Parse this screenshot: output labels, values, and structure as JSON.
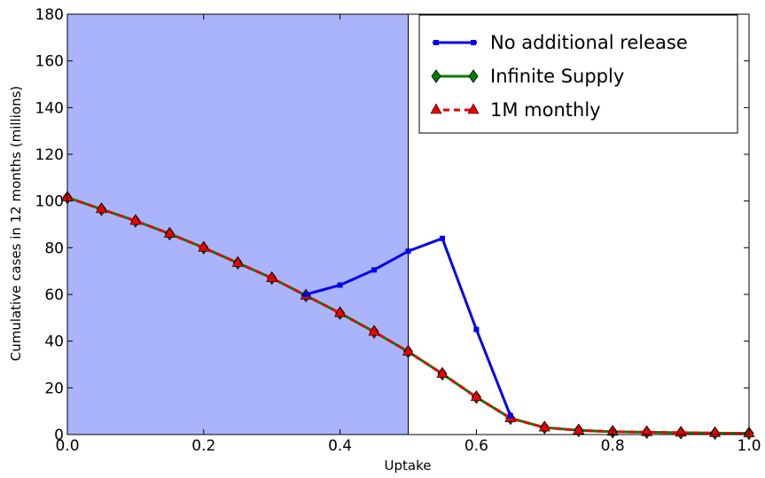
{
  "chart_data": {
    "type": "line",
    "title": "",
    "xlabel": "Uptake",
    "ylabel": "Cumulative cases in 12 months (millions)",
    "xlim": [
      0.0,
      1.0
    ],
    "ylim": [
      0,
      180
    ],
    "xticks": [
      "0.0",
      "0.2",
      "0.4",
      "0.6",
      "0.8",
      "1.0"
    ],
    "yticks": [
      "0",
      "20",
      "40",
      "60",
      "80",
      "100",
      "120",
      "140",
      "160",
      "180"
    ],
    "grid": false,
    "legend_position": "top-right",
    "shaded_region": {
      "x_from": 0.0,
      "x_to": 0.5,
      "color": "#aab4fa"
    },
    "vline_x": 0.5,
    "series": [
      {
        "name": "No additional release",
        "color": "#0000ee",
        "marker": "square",
        "linestyle": "solid",
        "x": [
          0.35,
          0.4,
          0.45,
          0.5,
          0.55,
          0.6,
          0.65
        ],
        "y": [
          60,
          64,
          70.5,
          78.5,
          84,
          45,
          8
        ]
      },
      {
        "name": "Infinite Supply",
        "color": "#007f00",
        "marker": "diamond",
        "linestyle": "solid",
        "x": [
          0.0,
          0.05,
          0.1,
          0.15,
          0.2,
          0.25,
          0.3,
          0.35,
          0.4,
          0.45,
          0.5,
          0.55,
          0.6,
          0.65,
          0.7,
          0.75,
          0.8,
          0.85,
          0.9,
          0.95,
          1.0
        ],
        "y": [
          101.5,
          96.5,
          91.5,
          86,
          80,
          73.5,
          67,
          59.5,
          52,
          44,
          35.5,
          26,
          16,
          7,
          3,
          1.8,
          1.2,
          1,
          0.8,
          0.6,
          0.5
        ]
      },
      {
        "name": "1M monthly",
        "color": "#ee0000",
        "marker": "triangle",
        "linestyle": "dashed",
        "x": [
          0.0,
          0.05,
          0.1,
          0.15,
          0.2,
          0.25,
          0.3,
          0.35,
          0.4,
          0.45,
          0.5,
          0.55,
          0.6,
          0.65,
          0.7,
          0.75,
          0.8,
          0.85,
          0.9,
          0.95,
          1.0
        ],
        "y": [
          101.5,
          96.5,
          91.5,
          86,
          80,
          73.5,
          67,
          59.5,
          52,
          44,
          35.5,
          26,
          16,
          7,
          3,
          1.8,
          1.2,
          1,
          0.8,
          0.6,
          0.5
        ]
      }
    ]
  }
}
